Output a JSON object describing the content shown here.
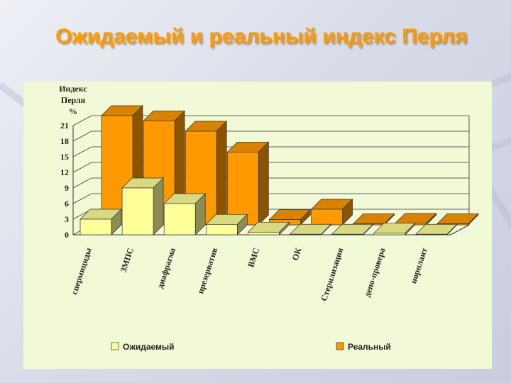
{
  "slide": {
    "title": "Ожидаемый и реальный индекс Перля",
    "colors": {
      "title": "#ff9a00",
      "panel": "#f1f9d6"
    }
  },
  "chart_data": {
    "type": "bar",
    "ylabel": [
      "Индекс",
      "Перля",
      "%"
    ],
    "ylim": [
      0,
      21
    ],
    "yticks": [
      0,
      3,
      6,
      9,
      12,
      15,
      18,
      21
    ],
    "categories": [
      "спермициды",
      "ЗМПС",
      "диафрагма",
      "презерватив",
      "ВМС",
      "ОК",
      "Стерилизация",
      "депо-провера",
      "норплант"
    ],
    "series": [
      {
        "name": "Ожидаемый",
        "color": "#ffff99",
        "values": [
          3,
          9,
          6,
          2,
          0.5,
          0.1,
          0.1,
          0.3,
          0.1
        ]
      },
      {
        "name": "Реальный",
        "color": "#ff9900",
        "values": [
          21,
          20,
          18,
          14,
          1,
          3,
          0.2,
          0.3,
          0.2
        ]
      }
    ],
    "legend_position": "bottom",
    "grid": true
  }
}
